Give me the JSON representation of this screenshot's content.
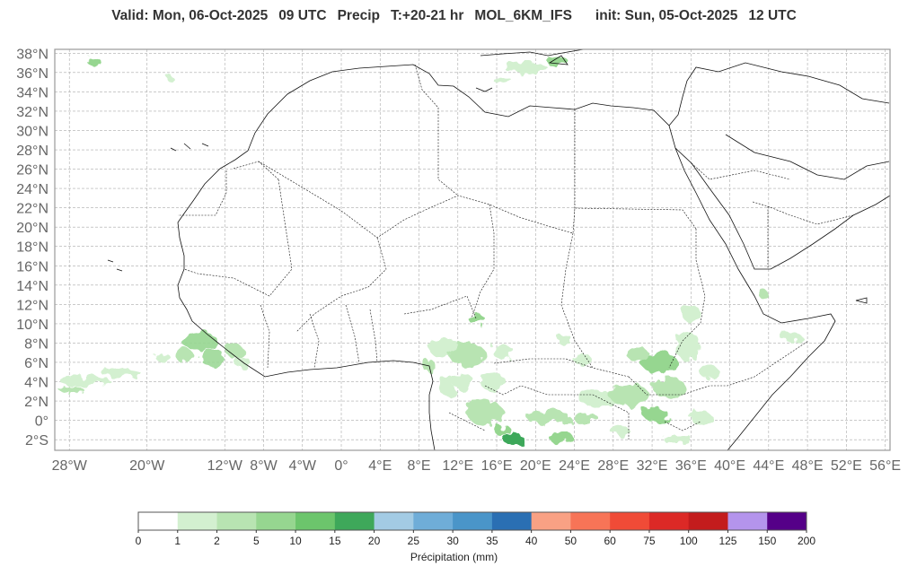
{
  "header": {
    "valid": "Valid: Mon, 06-Oct-2025",
    "valid_hour": "09 UTC",
    "field": "Precip",
    "lead": "T:+20-21 hr",
    "model": "MOL_6KM_IFS",
    "init": "init: Sun, 05-Oct-2025",
    "init_hour": "12 UTC"
  },
  "map": {
    "region": "North Africa",
    "lon_ticks": [
      "28°W",
      "20°W",
      "12°W",
      "8°W",
      "4°W",
      "0°",
      "4°E",
      "8°E",
      "12°E",
      "16°E",
      "20°E",
      "24°E",
      "28°E",
      "32°E",
      "36°E",
      "40°E",
      "44°E",
      "48°E",
      "52°E",
      "56°E"
    ],
    "lon_tick_values": [
      -28,
      -20,
      -12,
      -8,
      -4,
      0,
      4,
      8,
      12,
      16,
      20,
      24,
      28,
      32,
      36,
      40,
      44,
      48,
      52,
      56
    ],
    "lat_ticks": [
      "38°N",
      "36°N",
      "34°N",
      "32°N",
      "30°N",
      "28°N",
      "26°N",
      "24°N",
      "22°N",
      "20°N",
      "18°N",
      "16°N",
      "14°N",
      "12°N",
      "10°N",
      "8°N",
      "6°N",
      "4°N",
      "2°N",
      "0°",
      "2°S"
    ],
    "lat_tick_values": [
      38,
      36,
      34,
      32,
      30,
      28,
      26,
      24,
      22,
      20,
      18,
      16,
      14,
      12,
      10,
      8,
      6,
      4,
      2,
      0,
      -2
    ],
    "lon_range": [
      -29.5,
      56.5
    ],
    "lat_range": [
      -3.1,
      38.4
    ],
    "grid": true,
    "precip_areas": [
      {
        "name": "gulf-of-guinea-west",
        "lon": [
          -16,
          -9
        ],
        "lat": [
          5,
          9
        ]
      },
      {
        "name": "atlantic-band",
        "lon": [
          -29,
          -19
        ],
        "lat": [
          3,
          5
        ]
      },
      {
        "name": "nigeria-cameroon",
        "lon": [
          9,
          17
        ],
        "lat": [
          3,
          11
        ]
      },
      {
        "name": "central-africa",
        "lon": [
          13,
          26
        ],
        "lat": [
          -2.5,
          3
        ]
      },
      {
        "name": "south-sudan-ethiopia",
        "lon": [
          24,
          40
        ],
        "lat": [
          0,
          12
        ]
      },
      {
        "name": "mediterranean",
        "lon": [
          13,
          22
        ],
        "lat": [
          35,
          38
        ]
      }
    ]
  },
  "colorbar": {
    "label": "Précipitation (mm)",
    "ticks": [
      "0",
      "1",
      "2",
      "5",
      "10",
      "15",
      "20",
      "25",
      "30",
      "35",
      "40",
      "50",
      "60",
      "75",
      "100",
      "125",
      "150",
      "200"
    ],
    "colors": [
      "#ffffff",
      "#d3f0d0",
      "#b8e4b2",
      "#96d690",
      "#6cc56c",
      "#3ea85a",
      "#a3cbe4",
      "#6fadd8",
      "#4a95c9",
      "#2a6fb3",
      "#f9a184",
      "#f77457",
      "#f04b37",
      "#dc2926",
      "#c31c1d",
      "#b494ec",
      "#550088"
    ]
  }
}
